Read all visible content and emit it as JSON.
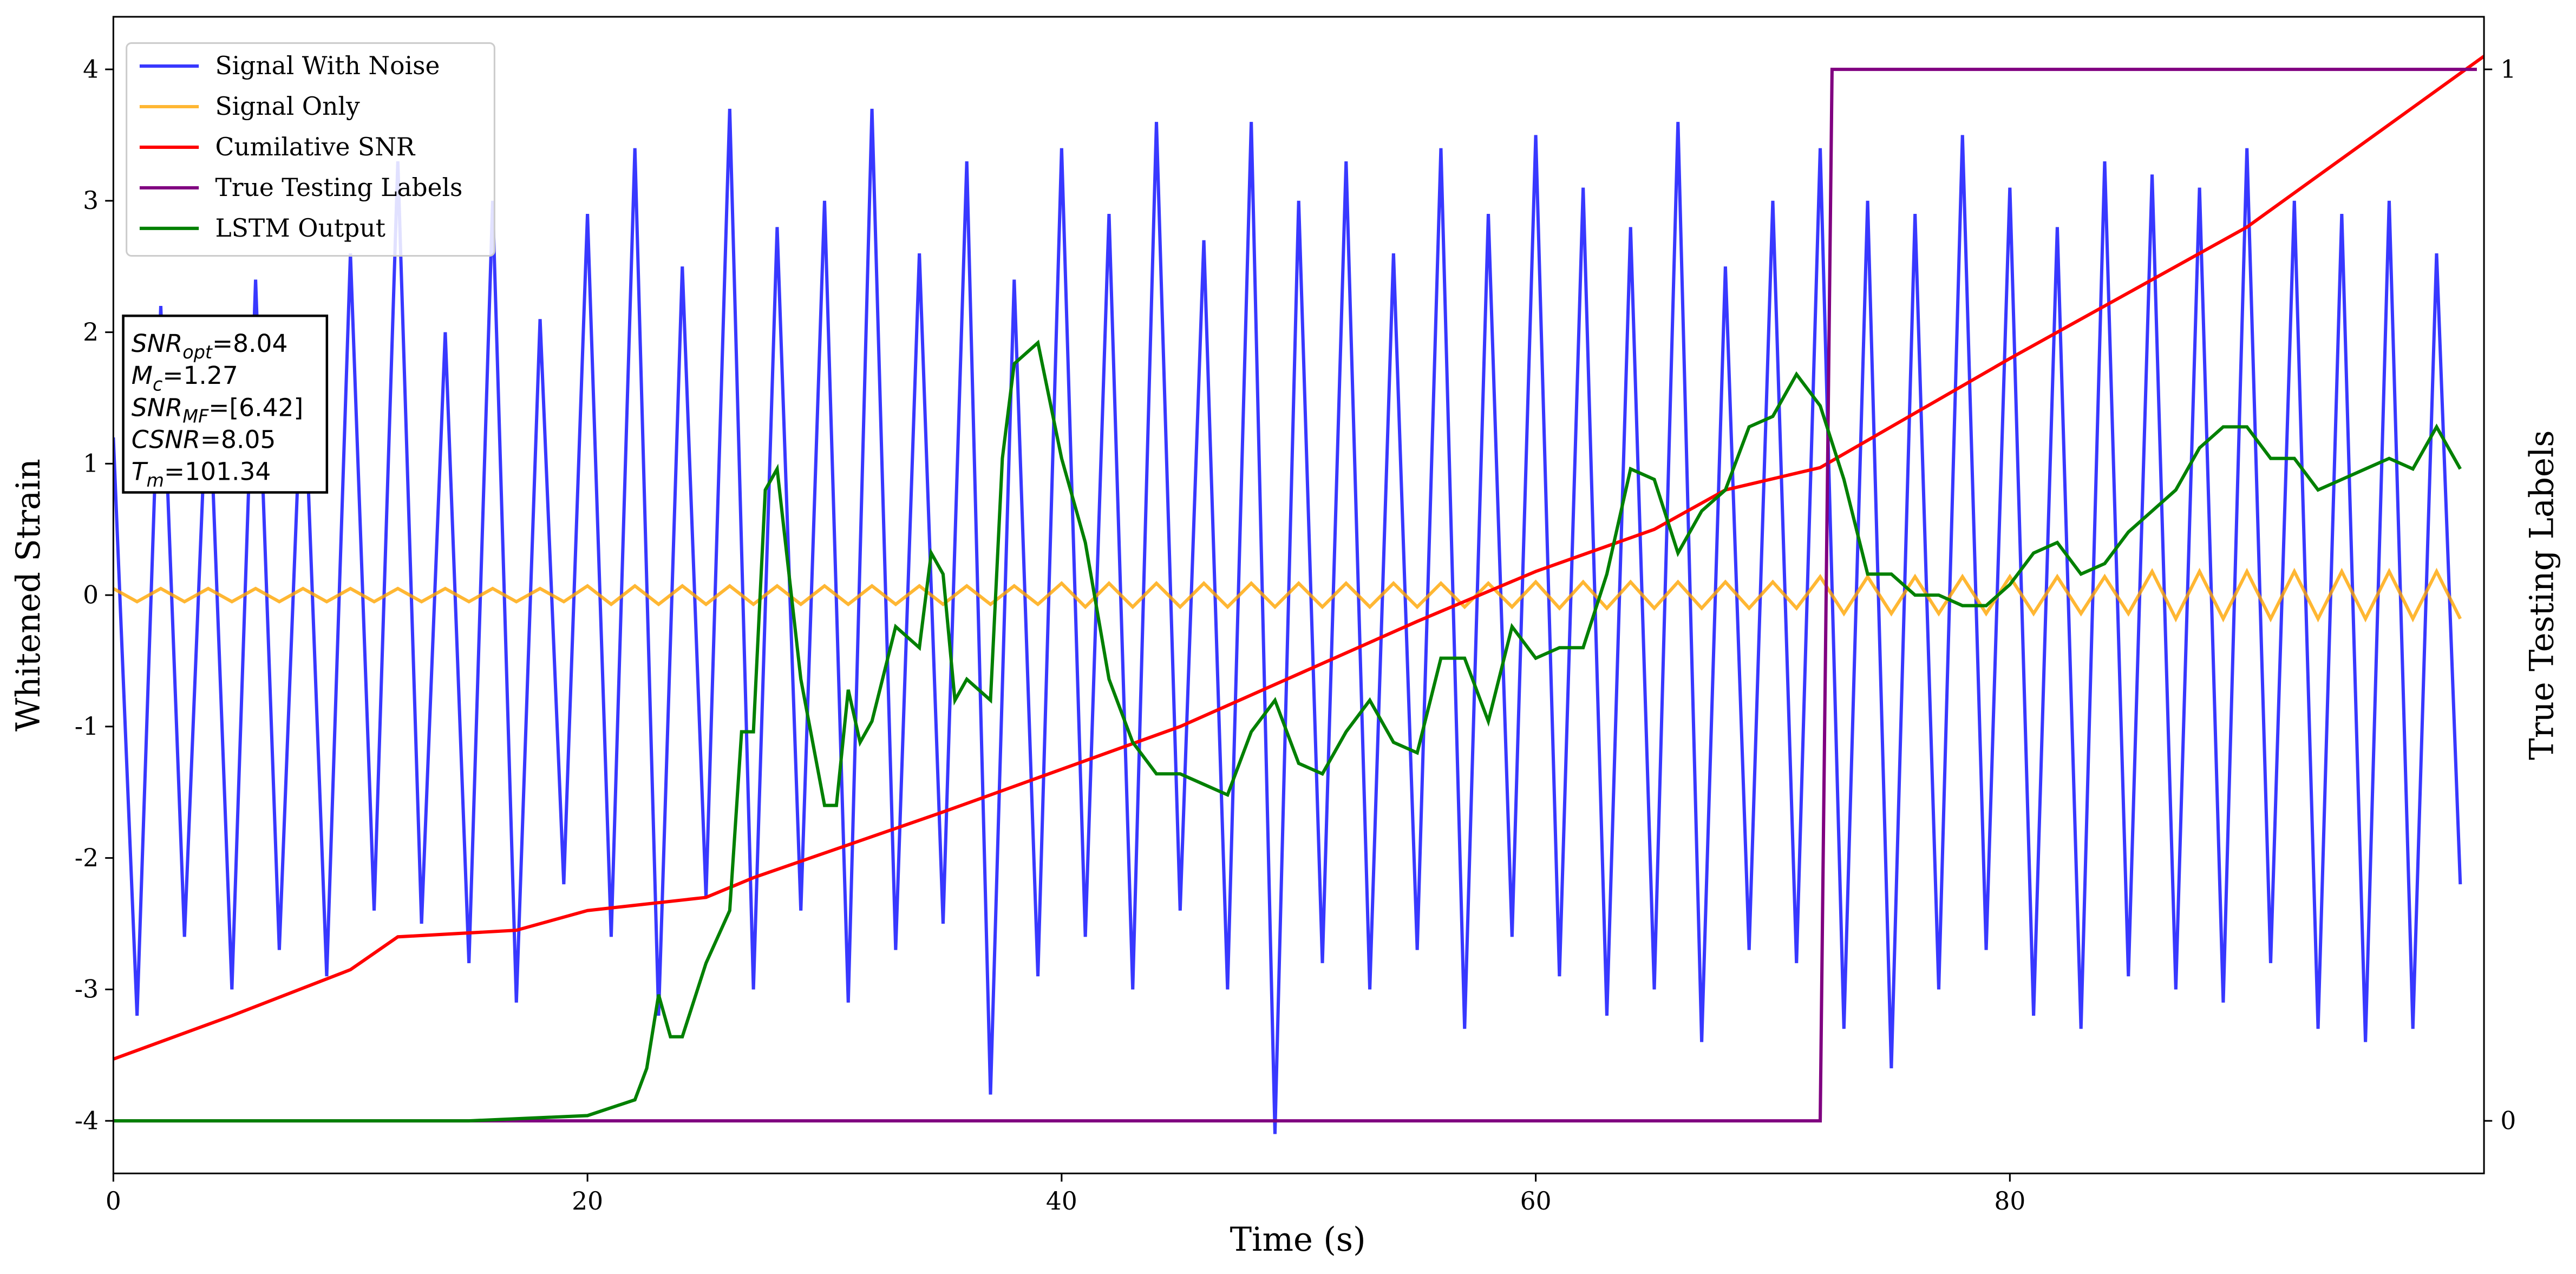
{
  "chart_data": {
    "type": "line",
    "xlabel": "Time (s)",
    "ylabel": "Whitened Strain",
    "y2label": "True Testing Labels",
    "xlim": [
      0,
      100
    ],
    "xticks": [
      0,
      20,
      40,
      60,
      80
    ],
    "ylim": [
      -4.4,
      4.4
    ],
    "yticks": [
      -4,
      -3,
      -2,
      -1,
      0,
      1,
      2,
      3,
      4
    ],
    "y2lim": [
      -0.05,
      1.05
    ],
    "y2ticks": [
      0,
      1
    ],
    "legend": "upper left",
    "annotation": [
      {
        "text": "SNR",
        "sub": "opt",
        "rest": "=8.04"
      },
      {
        "text": "M",
        "sub": "c",
        "rest": "=1.27"
      },
      {
        "text": "SNR",
        "sub": "MF",
        "rest": "=[6.42]"
      },
      {
        "text": "CSNR",
        "rest": "=8.05"
      },
      {
        "text": "T",
        "sub": "m",
        "rest": "=101.34"
      }
    ],
    "series": [
      {
        "name": "Signal With Noise",
        "color": "#2222ff",
        "opacity": 0.9,
        "x": [
          0,
          1,
          2,
          3,
          4,
          5,
          6,
          7,
          8,
          9,
          10,
          11,
          12,
          13,
          14,
          15,
          16,
          17,
          18,
          19,
          20,
          21,
          22,
          23,
          24,
          25,
          26,
          27,
          28,
          29,
          30,
          31,
          32,
          33,
          34,
          35,
          36,
          37,
          38,
          39,
          40,
          41,
          42,
          43,
          44,
          45,
          46,
          47,
          48,
          49,
          50,
          51,
          52,
          53,
          54,
          55,
          56,
          57,
          58,
          59,
          60,
          61,
          62,
          63,
          64,
          65,
          66,
          67,
          68,
          69,
          70,
          71,
          72,
          73,
          74,
          75,
          76,
          77,
          78,
          79,
          80,
          81,
          82,
          83,
          84,
          85,
          86,
          87,
          88,
          89,
          90,
          91,
          92,
          93,
          94,
          95,
          96,
          97,
          98,
          99
        ],
        "values": [
          1.2,
          -3.2,
          2.2,
          -2.6,
          1.8,
          -3.0,
          2.4,
          -2.7,
          1.9,
          -2.9,
          2.6,
          -2.4,
          3.3,
          -2.5,
          2.0,
          -2.8,
          3.0,
          -3.1,
          2.1,
          -2.2,
          2.9,
          -2.6,
          3.4,
          -3.2,
          2.5,
          -2.3,
          3.7,
          -3.0,
          2.8,
          -2.4,
          3.0,
          -3.1,
          3.7,
          -2.7,
          2.6,
          -2.5,
          3.3,
          -3.8,
          2.4,
          -2.9,
          3.4,
          -2.6,
          2.9,
          -3.0,
          3.6,
          -2.4,
          2.7,
          -3.0,
          3.6,
          -4.1,
          3.0,
          -2.8,
          3.3,
          -3.0,
          2.6,
          -2.7,
          3.4,
          -3.3,
          2.9,
          -2.6,
          3.5,
          -2.9,
          3.1,
          -3.2,
          2.8,
          -3.0,
          3.6,
          -3.4,
          2.5,
          -2.7,
          3.0,
          -2.8,
          3.4,
          -3.3,
          3.0,
          -3.6,
          2.9,
          -3.0,
          3.5,
          -2.7,
          3.1,
          -3.2,
          2.8,
          -3.3,
          3.3,
          -2.9,
          3.2,
          -3.0,
          3.1,
          -3.1,
          3.4,
          -2.8,
          3.0,
          -3.3,
          2.9,
          -3.4,
          3.0,
          -3.3,
          2.6,
          -2.2
        ]
      },
      {
        "name": "Signal Only",
        "color": "#ffa500",
        "opacity": 0.8,
        "x": [
          0,
          1,
          2,
          3,
          4,
          5,
          6,
          7,
          8,
          9,
          10,
          11,
          12,
          13,
          14,
          15,
          16,
          17,
          18,
          19,
          20,
          21,
          22,
          23,
          24,
          25,
          26,
          27,
          28,
          29,
          30,
          31,
          32,
          33,
          34,
          35,
          36,
          37,
          38,
          39,
          40,
          41,
          42,
          43,
          44,
          45,
          46,
          47,
          48,
          49,
          50,
          51,
          52,
          53,
          54,
          55,
          56,
          57,
          58,
          59,
          60,
          61,
          62,
          63,
          64,
          65,
          66,
          67,
          68,
          69,
          70,
          71,
          72,
          73,
          74,
          75,
          76,
          77,
          78,
          79,
          80,
          81,
          82,
          83,
          84,
          85,
          86,
          87,
          88,
          89,
          90,
          91,
          92,
          93,
          94,
          95,
          96,
          97,
          98,
          99
        ],
        "values": [
          0.05,
          -0.05,
          0.05,
          -0.05,
          0.05,
          -0.05,
          0.05,
          -0.05,
          0.05,
          -0.05,
          0.05,
          -0.05,
          0.05,
          -0.05,
          0.05,
          -0.05,
          0.05,
          -0.05,
          0.05,
          -0.05,
          0.07,
          -0.07,
          0.07,
          -0.07,
          0.07,
          -0.07,
          0.07,
          -0.07,
          0.07,
          -0.07,
          0.07,
          -0.07,
          0.07,
          -0.07,
          0.07,
          -0.07,
          0.07,
          -0.07,
          0.07,
          -0.07,
          0.09,
          -0.09,
          0.09,
          -0.09,
          0.09,
          -0.09,
          0.09,
          -0.09,
          0.09,
          -0.09,
          0.09,
          -0.09,
          0.09,
          -0.09,
          0.09,
          -0.09,
          0.09,
          -0.09,
          0.09,
          -0.09,
          0.1,
          -0.1,
          0.1,
          -0.1,
          0.1,
          -0.1,
          0.1,
          -0.1,
          0.1,
          -0.1,
          0.1,
          -0.1,
          0.14,
          -0.14,
          0.14,
          -0.14,
          0.14,
          -0.14,
          0.14,
          -0.14,
          0.14,
          -0.14,
          0.14,
          -0.14,
          0.14,
          -0.14,
          0.18,
          -0.18,
          0.18,
          -0.18,
          0.18,
          -0.18,
          0.18,
          -0.18,
          0.18,
          -0.18,
          0.18,
          -0.18,
          0.18,
          -0.18
        ]
      },
      {
        "name": "Cumilative SNR",
        "color": "#ff0000",
        "opacity": 1,
        "x": [
          0,
          5,
          10,
          12,
          17,
          20,
          25,
          27,
          35,
          45,
          55,
          60,
          65,
          68,
          72,
          80,
          90,
          100
        ],
        "values": [
          -3.53,
          -3.2,
          -2.85,
          -2.6,
          -2.55,
          -2.4,
          -2.3,
          -2.15,
          -1.65,
          -1.0,
          -0.2,
          0.18,
          0.5,
          0.8,
          0.97,
          1.8,
          2.8,
          4.1
        ]
      },
      {
        "name": "True Testing Labels",
        "color": "#800080",
        "opacity": 1,
        "axis": "y2",
        "x": [
          0,
          72,
          72.5,
          99.7
        ],
        "values": [
          0,
          0,
          1,
          1
        ]
      },
      {
        "name": "LSTM Output",
        "color": "#008000",
        "opacity": 1,
        "axis": "y2",
        "x": [
          0,
          15,
          20,
          22,
          22.5,
          23,
          23.5,
          24,
          25,
          26,
          26.5,
          27,
          27.5,
          28,
          29,
          30,
          30.5,
          31,
          31.5,
          32,
          33,
          34,
          34.5,
          35,
          35.5,
          36,
          37,
          37.5,
          38,
          39,
          40,
          41,
          42,
          43,
          44,
          45,
          46,
          47,
          48,
          49,
          50,
          51,
          52,
          53,
          54,
          55,
          56,
          57,
          58,
          59,
          60,
          61,
          62,
          63,
          64,
          65,
          66,
          67,
          68,
          69,
          70,
          71,
          72,
          73,
          74,
          75,
          76,
          77,
          78,
          79,
          80,
          81,
          82,
          83,
          84,
          85,
          86,
          87,
          88,
          89,
          90,
          91,
          92,
          93,
          94,
          95,
          96,
          97,
          98,
          99
        ],
        "values": [
          0,
          0,
          0.005,
          0.02,
          0.05,
          0.12,
          0.08,
          0.08,
          0.15,
          0.2,
          0.37,
          0.37,
          0.6,
          0.62,
          0.42,
          0.3,
          0.3,
          0.41,
          0.36,
          0.38,
          0.47,
          0.45,
          0.54,
          0.52,
          0.4,
          0.42,
          0.4,
          0.63,
          0.72,
          0.74,
          0.63,
          0.55,
          0.42,
          0.36,
          0.33,
          0.33,
          0.32,
          0.31,
          0.37,
          0.4,
          0.34,
          0.33,
          0.37,
          0.4,
          0.36,
          0.35,
          0.44,
          0.44,
          0.38,
          0.47,
          0.44,
          0.45,
          0.45,
          0.52,
          0.62,
          0.61,
          0.54,
          0.58,
          0.6,
          0.66,
          0.67,
          0.71,
          0.68,
          0.61,
          0.52,
          0.52,
          0.5,
          0.5,
          0.49,
          0.49,
          0.51,
          0.54,
          0.55,
          0.52,
          0.53,
          0.56,
          0.58,
          0.6,
          0.64,
          0.66,
          0.66,
          0.63,
          0.63,
          0.6,
          0.61,
          0.62,
          0.63,
          0.62,
          0.66,
          0.62
        ]
      }
    ]
  }
}
